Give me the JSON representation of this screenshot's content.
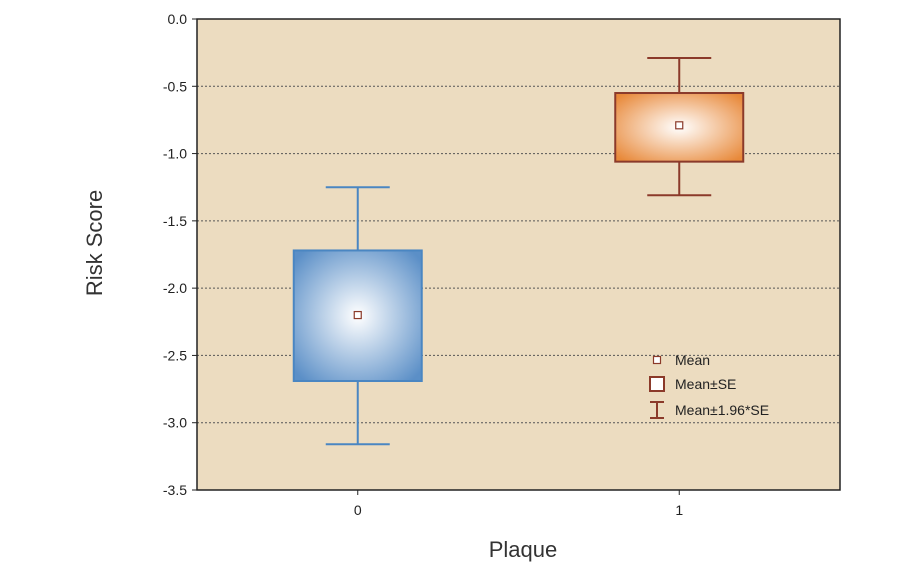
{
  "chart_data": {
    "type": "box",
    "xlabel": "Plaque",
    "ylabel": "Risk Score",
    "ylim": [
      -3.5,
      0.0
    ],
    "yticks": [
      0.0,
      -0.5,
      -1.0,
      -1.5,
      -2.0,
      -2.5,
      -3.0,
      -3.5
    ],
    "ytick_labels": [
      "0.0",
      "-0.5",
      "-1.0",
      "-1.5",
      "-2.0",
      "-2.5",
      "-3.0",
      "-3.5"
    ],
    "grid": "horizontal-dotted",
    "legend_position": "bottom-right",
    "categories": [
      "0",
      "1"
    ],
    "groups": [
      {
        "category": "0",
        "mean": -2.2,
        "mean_minus_se": -2.69,
        "mean_plus_se": -1.72,
        "mean_minus_196se": -3.16,
        "mean_plus_196se": -1.25,
        "color": "#5b8fc7"
      },
      {
        "category": "1",
        "mean": -0.79,
        "mean_minus_se": -1.06,
        "mean_plus_se": -0.55,
        "mean_minus_196se": -1.31,
        "mean_plus_196se": -0.29,
        "color": "#e8893a"
      }
    ],
    "legend": [
      {
        "symbol": "mean-marker",
        "label": "Mean"
      },
      {
        "symbol": "box",
        "label": "Mean±SE"
      },
      {
        "symbol": "whisker",
        "label": "Mean±1.96*SE"
      }
    ]
  },
  "colors": {
    "plot_background": "#ecdcc0",
    "frame": "#222222",
    "grid": "#555555",
    "legend_marker": "#8b3a2a",
    "whisker_0": "#4a86c2",
    "whisker_1": "#8b3a2a"
  }
}
